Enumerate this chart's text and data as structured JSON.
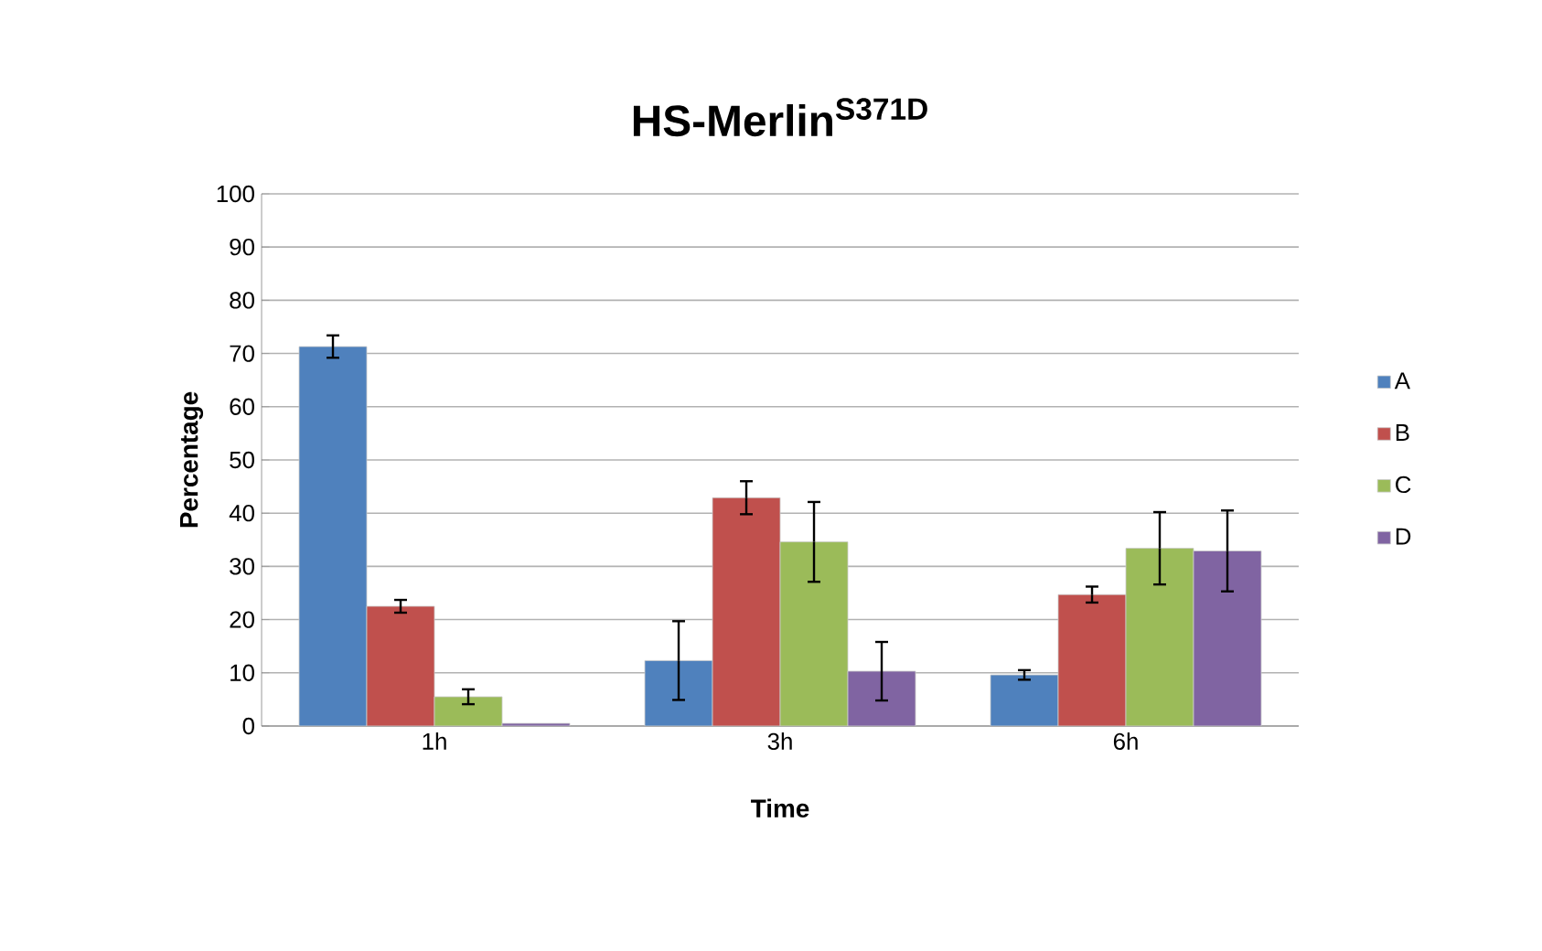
{
  "chart_data": {
    "type": "bar",
    "title": "HS-Merlin$^{S371D}$",
    "xlabel": "Time",
    "ylabel": "Percentage",
    "categories": [
      "1h",
      "3h",
      "6h"
    ],
    "series": [
      {
        "name": "A",
        "color": "#4f81bd",
        "values": [
          71.3,
          12.3,
          9.6
        ],
        "errors": [
          2.1,
          7.4,
          0.9
        ]
      },
      {
        "name": "B",
        "color": "#c0504d",
        "values": [
          22.5,
          42.9,
          24.7
        ],
        "errors": [
          1.2,
          3.1,
          1.5
        ]
      },
      {
        "name": "C",
        "color": "#9bbb59",
        "values": [
          5.5,
          34.6,
          33.4
        ],
        "errors": [
          1.4,
          7.5,
          6.8
        ]
      },
      {
        "name": "D",
        "color": "#8064a2",
        "values": [
          0.5,
          10.3,
          32.9
        ],
        "errors": [
          null,
          5.5,
          7.6
        ]
      }
    ],
    "ylim": [
      0,
      100
    ],
    "yticks": [
      0,
      10,
      20,
      30,
      40,
      50,
      60,
      70,
      80,
      90,
      100
    ],
    "grid": "y",
    "legend": "right"
  }
}
